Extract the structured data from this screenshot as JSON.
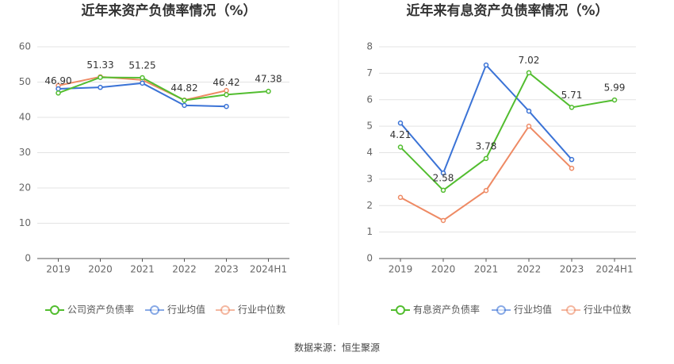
{
  "chart_data": [
    {
      "type": "line",
      "title": "近年来资产负债率情况（%）",
      "categories": [
        "2019",
        "2020",
        "2021",
        "2022",
        "2023",
        "2024H1"
      ],
      "ylim": [
        0,
        60
      ],
      "yticks": [
        0,
        10,
        20,
        30,
        40,
        50,
        60
      ],
      "grid": true,
      "series": [
        {
          "name": "公司资产负债率",
          "color": "#52bd2f",
          "values": [
            46.9,
            51.33,
            51.25,
            44.82,
            46.42,
            47.38
          ],
          "value_labels": [
            "46.90",
            "51.33",
            "51.25",
            "44.82",
            "46.42",
            "47.38"
          ]
        },
        {
          "name": "行业均值",
          "color": "#3b73d6",
          "values": [
            48.1,
            48.5,
            49.7,
            43.4,
            43.1,
            null
          ]
        },
        {
          "name": "行业中位数",
          "color": "#ee8a64",
          "values": [
            49.0,
            51.5,
            50.6,
            44.9,
            47.6,
            null
          ]
        }
      ]
    },
    {
      "type": "line",
      "title": "近年来有息资产负债率情况（%）",
      "categories": [
        "2019",
        "2020",
        "2021",
        "2022",
        "2023",
        "2024H1"
      ],
      "ylim": [
        0,
        8
      ],
      "yticks": [
        0,
        1,
        2,
        3,
        4,
        5,
        6,
        7,
        8
      ],
      "grid": true,
      "series": [
        {
          "name": "有息资产负债率",
          "color": "#52bd2f",
          "values": [
            4.21,
            2.58,
            3.78,
            7.02,
            5.71,
            5.99
          ]
        },
        {
          "name": "行业均值",
          "color": "#3b73d6",
          "values": [
            5.12,
            3.23,
            7.31,
            5.57,
            3.74,
            null
          ]
        },
        {
          "name": "行业中位数",
          "color": "#ee8a64",
          "values": [
            2.31,
            1.44,
            2.57,
            5.0,
            3.41,
            null
          ]
        }
      ]
    }
  ],
  "source": "数据来源：恒生聚源"
}
